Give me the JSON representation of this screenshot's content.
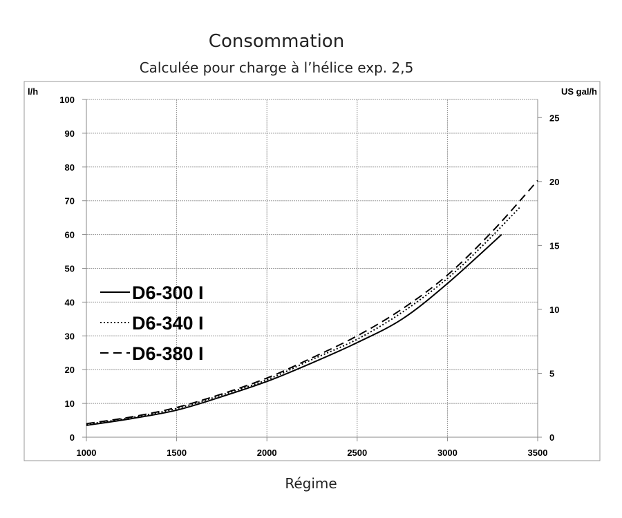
{
  "chart_data": {
    "type": "line",
    "title": "Consommation",
    "subtitle": "Calculée pour charge à l’hélice exp. 2,5",
    "xlabel": "Régime",
    "ylabel": "l/h",
    "y2label": "US gal/h",
    "xlim": [
      1000,
      3500
    ],
    "ylim": [
      0,
      100
    ],
    "y2lim": [
      0,
      26.42
    ],
    "xticks": [
      1000,
      1500,
      2000,
      2500,
      3000,
      3500
    ],
    "yticks": [
      0,
      10,
      20,
      30,
      40,
      50,
      60,
      70,
      80,
      90,
      100
    ],
    "y2ticks": [
      0,
      5,
      10,
      15,
      20,
      25
    ],
    "grid": true,
    "legend_position": "middle-left",
    "series": [
      {
        "name": "D6-300 I",
        "style": "solid",
        "x": [
          1000,
          1250,
          1500,
          1750,
          2000,
          2250,
          2500,
          2750,
          3000,
          3300
        ],
        "y": [
          3.5,
          5.5,
          8,
          12,
          16.5,
          22,
          28,
          35,
          45.5,
          60
        ]
      },
      {
        "name": "D6-340 I",
        "style": "dotted",
        "x": [
          1000,
          1250,
          1500,
          1750,
          2000,
          2250,
          2500,
          2750,
          3000,
          3200,
          3400
        ],
        "y": [
          3.8,
          5.8,
          8.5,
          12.5,
          17,
          23,
          29,
          37,
          47,
          57,
          68
        ]
      },
      {
        "name": "D6-380 I",
        "style": "dashed",
        "x": [
          1000,
          1250,
          1500,
          1750,
          2000,
          2250,
          2500,
          2750,
          3000,
          3250,
          3500
        ],
        "y": [
          4,
          6,
          8.8,
          12.8,
          17.5,
          23.5,
          30,
          38,
          48,
          61,
          76
        ]
      }
    ]
  }
}
